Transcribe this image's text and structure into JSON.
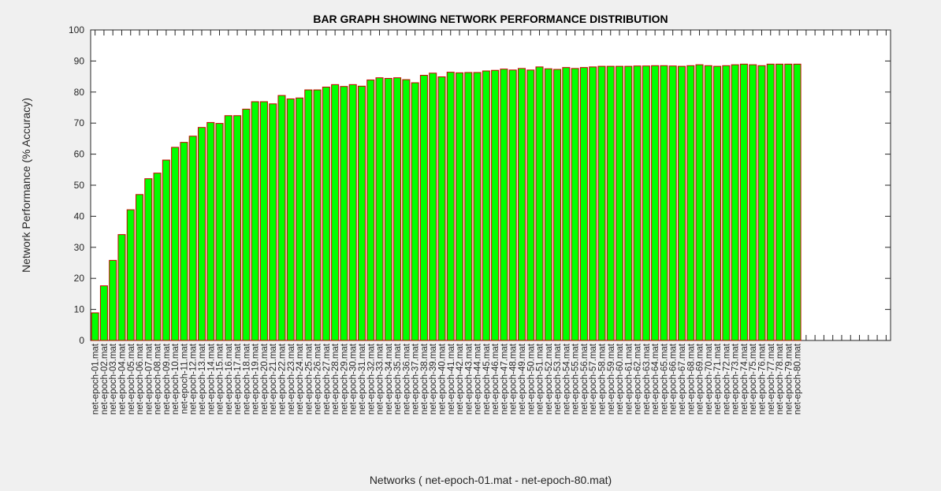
{
  "chart_data": {
    "type": "bar",
    "title": "BAR GRAPH SHOWING NETWORK PERFORMANCE DISTRIBUTION",
    "xlabel": "Networks ( net-epoch-01.mat - net-epoch-80.mat)",
    "ylabel": "Network Performance (% Accuracy)",
    "ylim": [
      0,
      100
    ],
    "yticks": [
      0,
      10,
      20,
      30,
      40,
      50,
      60,
      70,
      80,
      90,
      100
    ],
    "xlim": [
      0.5,
      90.5
    ],
    "grid": false,
    "bar_color": "#00ff00",
    "edge_color": "#cc0000",
    "categories": [
      "net-epoch-01.mat",
      "net-epoch-02.mat",
      "net-epoch-03.mat",
      "net-epoch-04.mat",
      "net-epoch-05.mat",
      "net-epoch-06.mat",
      "net-epoch-07.mat",
      "net-epoch-08.mat",
      "net-epoch-09.mat",
      "net-epoch-10.mat",
      "net-epoch-11.mat",
      "net-epoch-12.mat",
      "net-epoch-13.mat",
      "net-epoch-14.mat",
      "net-epoch-15.mat",
      "net-epoch-16.mat",
      "net-epoch-17.mat",
      "net-epoch-18.mat",
      "net-epoch-19.mat",
      "net-epoch-20.mat",
      "net-epoch-21.mat",
      "net-epoch-22.mat",
      "net-epoch-23.mat",
      "net-epoch-24.mat",
      "net-epoch-25.mat",
      "net-epoch-26.mat",
      "net-epoch-27.mat",
      "net-epoch-28.mat",
      "net-epoch-29.mat",
      "net-epoch-30.mat",
      "net-epoch-31.mat",
      "net-epoch-32.mat",
      "net-epoch-33.mat",
      "net-epoch-34.mat",
      "net-epoch-35.mat",
      "net-epoch-36.mat",
      "net-epoch-37.mat",
      "net-epoch-38.mat",
      "net-epoch-39.mat",
      "net-epoch-40.mat",
      "net-epoch-41.mat",
      "net-epoch-42.mat",
      "net-epoch-43.mat",
      "net-epoch-44.mat",
      "net-epoch-45.mat",
      "net-epoch-46.mat",
      "net-epoch-47.mat",
      "net-epoch-48.mat",
      "net-epoch-49.mat",
      "net-epoch-50.mat",
      "net-epoch-51.mat",
      "net-epoch-52.mat",
      "net-epoch-53.mat",
      "net-epoch-54.mat",
      "net-epoch-55.mat",
      "net-epoch-56.mat",
      "net-epoch-57.mat",
      "net-epoch-58.mat",
      "net-epoch-59.mat",
      "net-epoch-60.mat",
      "net-epoch-61.mat",
      "net-epoch-62.mat",
      "net-epoch-63.mat",
      "net-epoch-64.mat",
      "net-epoch-65.mat",
      "net-epoch-66.mat",
      "net-epoch-67.mat",
      "net-epoch-68.mat",
      "net-epoch-69.mat",
      "net-epoch-70.mat",
      "net-epoch-71.mat",
      "net-epoch-72.mat",
      "net-epoch-73.mat",
      "net-epoch-74.mat",
      "net-epoch-75.mat",
      "net-epoch-76.mat",
      "net-epoch-77.mat",
      "net-epoch-78.mat",
      "net-epoch-79.mat",
      "net-epoch-80.mat"
    ],
    "values": [
      8.9,
      17.6,
      25.8,
      34.1,
      42.1,
      47.0,
      52.1,
      53.9,
      58.1,
      62.2,
      63.8,
      65.8,
      68.6,
      70.2,
      69.9,
      72.4,
      72.4,
      74.5,
      76.9,
      76.9,
      76.2,
      78.9,
      77.8,
      78.1,
      80.7,
      80.7,
      81.6,
      82.4,
      81.8,
      82.4,
      81.9,
      83.9,
      84.6,
      84.4,
      84.6,
      84.0,
      83.0,
      85.4,
      86.1,
      84.9,
      86.4,
      86.2,
      86.3,
      86.3,
      86.8,
      87.0,
      87.4,
      87.1,
      87.6,
      87.1,
      88.1,
      87.5,
      87.3,
      87.9,
      87.6,
      87.9,
      88.1,
      88.3,
      88.3,
      88.3,
      88.3,
      88.4,
      88.4,
      88.5,
      88.5,
      88.4,
      88.3,
      88.5,
      88.8,
      88.5,
      88.3,
      88.5,
      88.8,
      89.0,
      88.8,
      88.5,
      89.0,
      89.0,
      89.0,
      89.0
    ]
  }
}
